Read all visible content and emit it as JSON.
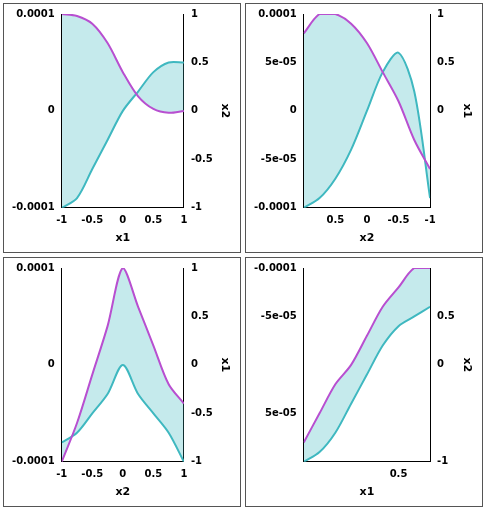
{
  "chart_data": [
    {
      "type": "line",
      "x_label": "x1",
      "y2_label": "x2",
      "x": [
        -1,
        -0.75,
        -0.5,
        -0.25,
        0,
        0.25,
        0.5,
        0.75,
        1
      ],
      "xlim": [
        -1,
        1
      ],
      "xticks": [
        -1,
        -0.5,
        0,
        0.5,
        1
      ],
      "ylim": [
        -0.0001,
        0.0001
      ],
      "yticks": [
        -0.0001,
        0,
        0.0001
      ],
      "y2lim": [
        -1,
        1
      ],
      "y2ticks": [
        -1,
        -0.5,
        0,
        0.5,
        1
      ],
      "grid": false,
      "series": [
        {
          "color": "#b84fd0",
          "values": [
            0.0001,
            9.8e-05,
            9e-05,
            7e-05,
            4e-05,
            1.5e-05,
            2e-06,
            -2e-06,
            0
          ]
        },
        {
          "color": "#3fb8c0",
          "values": [
            -0.0001,
            -9e-05,
            -6e-05,
            -3e-05,
            0,
            2e-05,
            4e-05,
            5e-05,
            5e-05
          ]
        }
      ]
    },
    {
      "type": "line",
      "x_label": "x2",
      "y2_label": "x1",
      "x": [
        1,
        0.75,
        0.5,
        0.25,
        0,
        -0.25,
        -0.5,
        -0.75,
        -1
      ],
      "xlim": [
        1,
        -1
      ],
      "xticks": [
        0.5,
        0,
        -0.5,
        -1
      ],
      "ylim": [
        -0.0001,
        0.0001
      ],
      "yticks": [
        -0.0001,
        {
          "value": -5e-05,
          "label": "-5e-05"
        },
        0,
        {
          "value": 5e-05,
          "label": "5e-05"
        },
        0.0001
      ],
      "y2lim": [
        -1,
        1
      ],
      "y2ticks": [
        0,
        0.5,
        1
      ],
      "grid": false,
      "series": [
        {
          "color": "#b84fd0",
          "values": [
            8e-05,
            0.0001,
            0.0001,
            9e-05,
            7e-05,
            4e-05,
            1e-05,
            -3e-05,
            -6e-05
          ]
        },
        {
          "color": "#3fb8c0",
          "values": [
            -0.0001,
            -9e-05,
            -7e-05,
            -4e-05,
            0,
            4e-05,
            6e-05,
            2e-05,
            -9e-05
          ]
        }
      ]
    },
    {
      "type": "line",
      "x_label": "x2",
      "y2_label": "x1",
      "x": [
        -1,
        -0.75,
        -0.5,
        -0.25,
        0,
        0.25,
        0.5,
        0.75,
        1
      ],
      "xlim": [
        -1,
        1
      ],
      "xticks": [
        -1,
        -0.5,
        0,
        0.5,
        1
      ],
      "ylim": [
        -0.0001,
        0.0001
      ],
      "yticks": [
        -0.0001,
        0,
        0.0001
      ],
      "y2lim": [
        -1,
        1
      ],
      "y2ticks": [
        -1,
        -0.5,
        0,
        0.5,
        1
      ],
      "grid": false,
      "series": [
        {
          "color": "#b84fd0",
          "values": [
            -0.0001,
            -6e-05,
            -1e-05,
            4e-05,
            0.0001,
            6e-05,
            2e-05,
            -2e-05,
            -4e-05
          ]
        },
        {
          "color": "#3fb8c0",
          "values": [
            -8e-05,
            -7e-05,
            -5e-05,
            -3e-05,
            0,
            -3e-05,
            -5e-05,
            -7e-05,
            -0.0001
          ]
        }
      ]
    },
    {
      "type": "line",
      "x_label": "x1",
      "y2_label": "x2",
      "x": [
        -1,
        -0.75,
        -0.5,
        -0.25,
        0,
        0.25,
        0.5,
        0.75,
        1
      ],
      "xlim": [
        -1,
        1
      ],
      "xticks": [
        0.5
      ],
      "ylim": [
        0.0001,
        -0.0001
      ],
      "yticks": [
        -0.0001,
        {
          "value": -5e-05,
          "label": "-5e-05"
        },
        {
          "value": 5e-05,
          "label": "5e-05"
        }
      ],
      "y2lim": [
        -1,
        1
      ],
      "y2ticks": [
        -1,
        0,
        0.5
      ],
      "grid": false,
      "series": [
        {
          "color": "#b84fd0",
          "values": [
            8e-05,
            5e-05,
            2e-05,
            0,
            -3e-05,
            -6e-05,
            -8e-05,
            -0.0001,
            -0.0001
          ]
        },
        {
          "color": "#3fb8c0",
          "values": [
            0.0001,
            9e-05,
            7e-05,
            4e-05,
            1e-05,
            -2e-05,
            -4e-05,
            -5e-05,
            -6e-05
          ]
        }
      ]
    }
  ]
}
